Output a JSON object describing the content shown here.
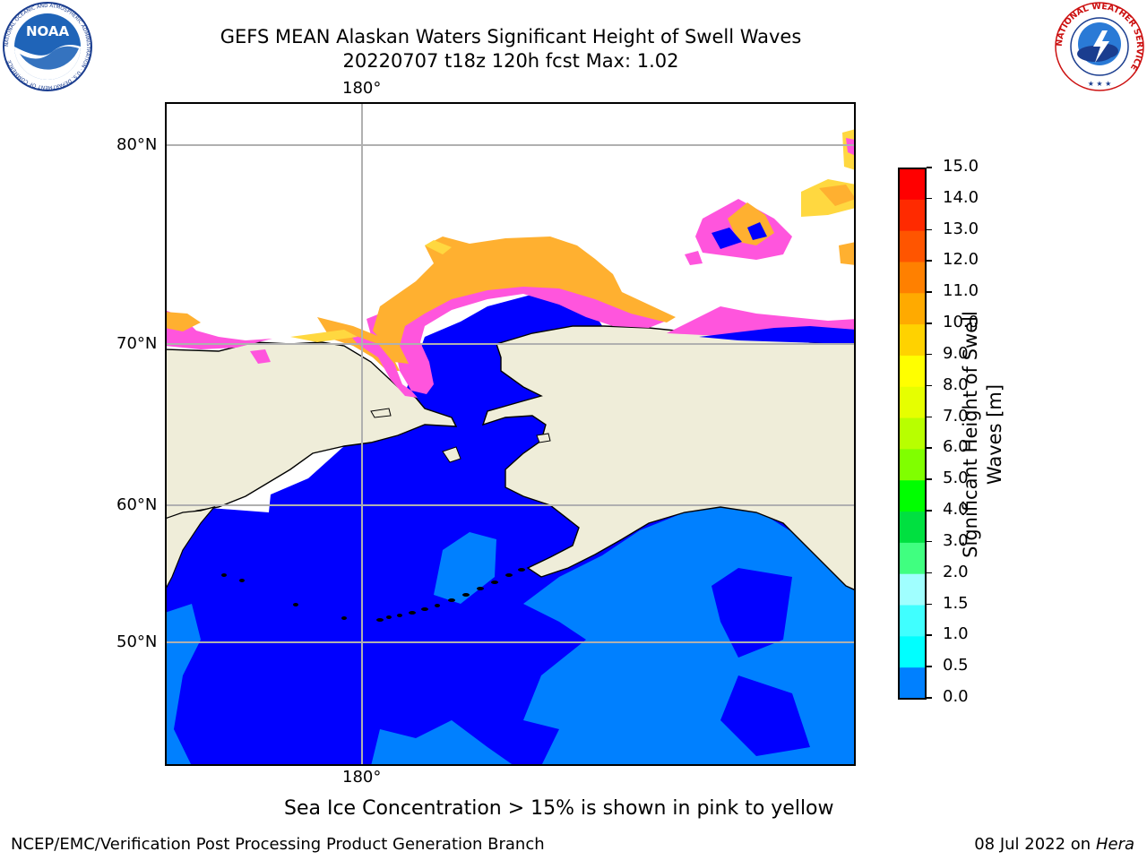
{
  "header": {
    "title_line1": "GEFS MEAN Alaskan Waters Significant Height of Swell Waves",
    "title_line2": "20220707 t18z 120h fcst   Max: 1.02"
  },
  "logos": {
    "noaa_text": "NOAA",
    "noaa_ring": "NATIONAL OCEANIC AND ATMOSPHERIC ADMINISTRATION · U.S. DEPARTMENT OF COMMERCE",
    "nws_ring": "NATIONAL WEATHER SERVICE"
  },
  "map": {
    "lon_labels": {
      "top": "180°",
      "bottom": "180°"
    },
    "lat_labels": [
      "80°N",
      "70°N",
      "60°N",
      "50°N"
    ],
    "colors": {
      "ocean_low": "#0000ff",
      "ocean_mid": "#0080ff",
      "land": "#efedd9",
      "ice_pink": "#ff55dd",
      "ice_orange": "#ffb030",
      "ice_yellow": "#ffd840",
      "grid": "#b0b0b0"
    }
  },
  "colorbar": {
    "label": "Significant Height of Swell Waves [m]",
    "ticks": [
      "15.0",
      "14.0",
      "13.0",
      "12.0",
      "11.0",
      "10.0",
      "9.0",
      "8.0",
      "7.0",
      "6.0",
      "5.0",
      "4.0",
      "3.0",
      "2.0",
      "1.5",
      "1.0",
      "0.5",
      "0.0"
    ],
    "colors_top_to_bottom": [
      "#ff0000",
      "#ff2a00",
      "#ff5500",
      "#ff8000",
      "#ffaa00",
      "#ffd200",
      "#ffff00",
      "#e6ff00",
      "#b8ff00",
      "#80ff00",
      "#00ff00",
      "#00e040",
      "#40ff80",
      "#a0ffff",
      "#40ffff",
      "#00ffff",
      "#0080ff",
      "#0000ff"
    ]
  },
  "caption": "Sea Ice Concentration > 15% is shown in pink to yellow",
  "footer": {
    "left": "NCEP/EMC/Verification Post Processing Product Generation Branch",
    "date": "08 Jul 2022 on ",
    "machine": "Hera"
  }
}
